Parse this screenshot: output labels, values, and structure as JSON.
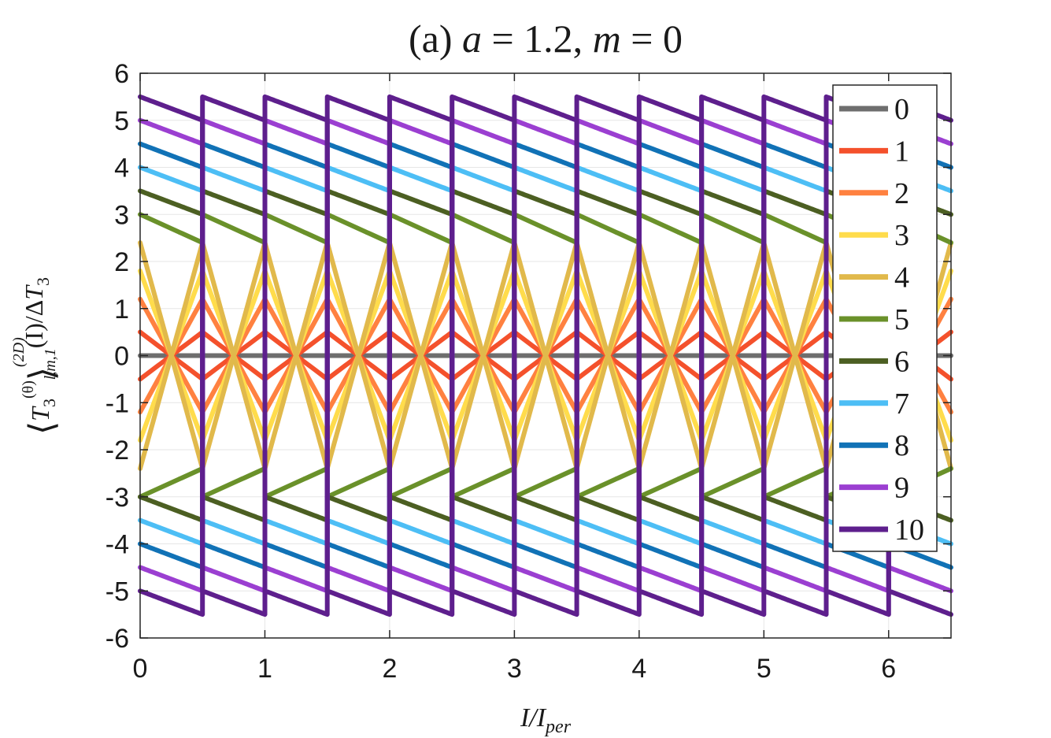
{
  "chart_data": {
    "type": "line",
    "title_parts": {
      "prefix": "(a) ",
      "var1": "a",
      "eq1": " = 1.2, ",
      "var2": "m",
      "eq2": " = 0"
    },
    "xlabel": "I/I_per",
    "xlabel_parts": {
      "main": "I/I",
      "sub": "per"
    },
    "ylabel": "⟨T̃3^(θ)⟩^(2D)_{l,m,1}(I)/ΔT̃3",
    "ylabel_parts": {
      "T": "T",
      "sub3": "3",
      "sup_theta": "(θ)",
      "sup_2d": "(2D)",
      "sub_lm1": "l,m,1",
      "arg": "(I)/Δ",
      "T2": "T",
      "sub3b": "3"
    },
    "xlim": [
      0,
      6.5
    ],
    "ylim": [
      -6,
      6
    ],
    "x_ticks": [
      0,
      1,
      2,
      3,
      4,
      5,
      6
    ],
    "x_tick_labels": [
      "0",
      "1",
      "2",
      "3",
      "4",
      "5",
      "6"
    ],
    "y_ticks": [
      6,
      5,
      4,
      3,
      2,
      1,
      0,
      -1,
      -2,
      -3,
      -4,
      -5,
      -6
    ],
    "y_tick_labels": [
      "6",
      "5",
      "4",
      "3",
      "2",
      "1",
      "0",
      "-1",
      "-2",
      "-3",
      "-4",
      "-5",
      "-6"
    ],
    "grid": true,
    "legend_position": "top-right",
    "period": 0.5,
    "series": [
      {
        "name": "0",
        "color": "#6e6e6e",
        "values_at_period_start": [
          0,
          0
        ],
        "values_before_flip": [
          0,
          0
        ]
      },
      {
        "name": "1",
        "color": "#f4512c",
        "values_at_period_start": [
          0.5,
          -0.5
        ],
        "values_before_flip": [
          -0.5,
          0.5
        ]
      },
      {
        "name": "2",
        "color": "#ff8140",
        "values_at_period_start": [
          1.2,
          -1.2
        ],
        "values_before_flip": [
          -1.2,
          1.2
        ]
      },
      {
        "name": "3",
        "color": "#ffdc4c",
        "values_at_period_start": [
          1.8,
          -1.8
        ],
        "values_before_flip": [
          -1.8,
          1.8
        ]
      },
      {
        "name": "4",
        "color": "#e1b94b",
        "values_at_period_start": [
          2.4,
          -2.4
        ],
        "values_before_flip": [
          -2.4,
          2.4
        ]
      },
      {
        "name": "5",
        "color": "#6a912a",
        "values_at_period_start": [
          3.0,
          -3.0
        ],
        "values_before_flip": [
          2.4,
          -2.4
        ]
      },
      {
        "name": "6",
        "color": "#4c5f22",
        "values_at_period_start": [
          3.5,
          -3.0
        ],
        "values_before_flip": [
          3.0,
          -3.5
        ]
      },
      {
        "name": "7",
        "color": "#4dbef5",
        "values_at_period_start": [
          4.0,
          -3.5
        ],
        "values_before_flip": [
          3.5,
          -4.0
        ]
      },
      {
        "name": "8",
        "color": "#1172b6",
        "values_at_period_start": [
          4.5,
          -4.0
        ],
        "values_before_flip": [
          4.0,
          -4.5
        ]
      },
      {
        "name": "9",
        "color": "#9b3fd1",
        "values_at_period_start": [
          5.0,
          -4.5
        ],
        "values_before_flip": [
          4.5,
          -5.0
        ]
      },
      {
        "name": "10",
        "color": "#5e1f8d",
        "values_at_period_start": [
          5.5,
          -5.0
        ],
        "values_before_flip": [
          5.0,
          -5.5
        ]
      }
    ]
  }
}
